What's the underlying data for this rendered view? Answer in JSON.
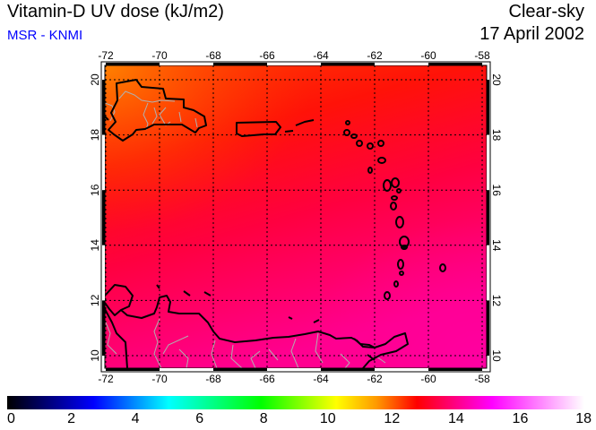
{
  "header": {
    "title": "Vitamin-D UV dose (kJ/m2)",
    "source": "MSR - KNMI",
    "condition": "Clear-sky",
    "date": "17 April 2002"
  },
  "map": {
    "lon_labels": [
      "-72",
      "-70",
      "-68",
      "-66",
      "-64",
      "-62",
      "-60",
      "-58"
    ],
    "lat_labels": [
      "20",
      "18",
      "16",
      "14",
      "12",
      "10"
    ],
    "field_colors": {
      "top_left": "#ff7000",
      "middle": "#ff0a20",
      "bottom_right": "#ff0098"
    }
  },
  "colorbar": {
    "ticks": [
      "0",
      "2",
      "4",
      "6",
      "8",
      "10",
      "12",
      "14",
      "16",
      "18"
    ],
    "colors": [
      "#000000",
      "#0000ff",
      "#00ffff",
      "#00ff00",
      "#ffff00",
      "#ff9900",
      "#ff0000",
      "#ff00ff",
      "#ffffff"
    ]
  }
}
